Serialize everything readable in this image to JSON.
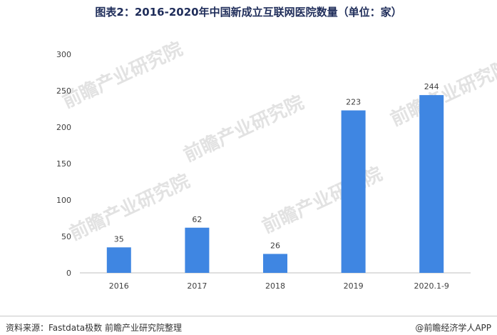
{
  "title": "图表2：2016-2020年中国新成立互联网医院数量（单位：家）",
  "watermark_text": "前瞻产业研究院",
  "footer": {
    "source": "资料来源：Fastdata极数  前瞻产业研究院整理",
    "brand": "@前瞻经济学人APP"
  },
  "colors": {
    "bar": "#3f86e2",
    "axis": "#bfbfbf",
    "text": "#404040"
  },
  "chart_data": {
    "type": "bar",
    "categories": [
      "2016",
      "2017",
      "2018",
      "2019",
      "2020.1-9"
    ],
    "values": [
      35,
      62,
      26,
      223,
      244
    ],
    "yticks": [
      0,
      50,
      100,
      150,
      200,
      250,
      300
    ],
    "ylim": [
      0,
      300
    ],
    "grid": false,
    "title": "图表2：2016-2020年中国新成立互联网医院数量（单位：家）"
  }
}
